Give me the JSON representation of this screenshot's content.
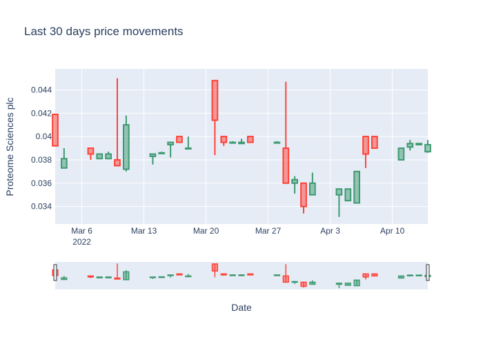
{
  "chart_data": {
    "type": "candlestick",
    "title": "Last 30 days price movements",
    "xlabel": "Date",
    "ylabel": "Proteome Sciences plc",
    "ylim": [
      0.0325,
      0.0458
    ],
    "y_ticks": [
      0.034,
      0.036,
      0.038,
      0.04,
      0.042,
      0.044
    ],
    "y_tick_labels": [
      "0.034",
      "0.036",
      "0.038",
      "0.04",
      "0.042",
      "0.044"
    ],
    "x_ticks": [
      {
        "date": "2022-03-06",
        "label": "Mar 6",
        "sublabel": "2022"
      },
      {
        "date": "2022-03-13",
        "label": "Mar 13"
      },
      {
        "date": "2022-03-20",
        "label": "Mar 20"
      },
      {
        "date": "2022-03-27",
        "label": "Mar 27"
      },
      {
        "date": "2022-04-03",
        "label": "Apr 3"
      },
      {
        "date": "2022-04-10",
        "label": "Apr 10"
      }
    ],
    "xlim": [
      "2022-03-03T12:00",
      "2022-04-14T12:00"
    ],
    "increasing_color": "#3D9970",
    "decreasing_color": "#FF4136",
    "rangeslider": true,
    "candles": [
      {
        "date": "2022-03-03",
        "open": 0.0419,
        "high": 0.0419,
        "low": 0.0392,
        "close": 0.0392
      },
      {
        "date": "2022-03-04",
        "open": 0.0373,
        "high": 0.039,
        "low": 0.0373,
        "close": 0.0381
      },
      {
        "date": "2022-03-07",
        "open": 0.039,
        "high": 0.039,
        "low": 0.038,
        "close": 0.0385
      },
      {
        "date": "2022-03-08",
        "open": 0.0381,
        "high": 0.0385,
        "low": 0.0381,
        "close": 0.0385
      },
      {
        "date": "2022-03-09",
        "open": 0.0381,
        "high": 0.0387,
        "low": 0.0381,
        "close": 0.0385
      },
      {
        "date": "2022-03-10",
        "open": 0.038,
        "high": 0.045,
        "low": 0.0375,
        "close": 0.0375
      },
      {
        "date": "2022-03-11",
        "open": 0.0372,
        "high": 0.0418,
        "low": 0.037,
        "close": 0.041
      },
      {
        "date": "2022-03-14",
        "open": 0.0383,
        "high": 0.0385,
        "low": 0.0376,
        "close": 0.0385
      },
      {
        "date": "2022-03-15",
        "open": 0.0386,
        "high": 0.0387,
        "low": 0.0385,
        "close": 0.0386
      },
      {
        "date": "2022-03-16",
        "open": 0.0393,
        "high": 0.0395,
        "low": 0.0382,
        "close": 0.0395
      },
      {
        "date": "2022-03-17",
        "open": 0.04,
        "high": 0.04,
        "low": 0.0395,
        "close": 0.0395
      },
      {
        "date": "2022-03-18",
        "open": 0.039,
        "high": 0.04,
        "low": 0.039,
        "close": 0.039
      },
      {
        "date": "2022-03-21",
        "open": 0.0448,
        "high": 0.0448,
        "low": 0.0384,
        "close": 0.0414
      },
      {
        "date": "2022-03-22",
        "open": 0.04,
        "high": 0.04,
        "low": 0.0392,
        "close": 0.0395
      },
      {
        "date": "2022-03-23",
        "open": 0.0395,
        "high": 0.0396,
        "low": 0.0394,
        "close": 0.0395
      },
      {
        "date": "2022-03-24",
        "open": 0.0394,
        "high": 0.0398,
        "low": 0.0394,
        "close": 0.0395
      },
      {
        "date": "2022-03-25",
        "open": 0.04,
        "high": 0.04,
        "low": 0.0395,
        "close": 0.0395
      },
      {
        "date": "2022-03-28",
        "open": 0.0395,
        "high": 0.0396,
        "low": 0.0394,
        "close": 0.0395
      },
      {
        "date": "2022-03-29",
        "open": 0.039,
        "high": 0.0447,
        "low": 0.036,
        "close": 0.036
      },
      {
        "date": "2022-03-30",
        "open": 0.036,
        "high": 0.0366,
        "low": 0.0351,
        "close": 0.0363
      },
      {
        "date": "2022-03-31",
        "open": 0.036,
        "high": 0.036,
        "low": 0.0334,
        "close": 0.034
      },
      {
        "date": "2022-04-01",
        "open": 0.035,
        "high": 0.0369,
        "low": 0.035,
        "close": 0.036
      },
      {
        "date": "2022-04-04",
        "open": 0.035,
        "high": 0.0355,
        "low": 0.0331,
        "close": 0.0355
      },
      {
        "date": "2022-04-05",
        "open": 0.0345,
        "high": 0.0355,
        "low": 0.0345,
        "close": 0.0355
      },
      {
        "date": "2022-04-06",
        "open": 0.0343,
        "high": 0.037,
        "low": 0.0343,
        "close": 0.037
      },
      {
        "date": "2022-04-07",
        "open": 0.04,
        "high": 0.04,
        "low": 0.0373,
        "close": 0.0385
      },
      {
        "date": "2022-04-08",
        "open": 0.04,
        "high": 0.04,
        "low": 0.039,
        "close": 0.039
      },
      {
        "date": "2022-04-11",
        "open": 0.038,
        "high": 0.039,
        "low": 0.038,
        "close": 0.039
      },
      {
        "date": "2022-04-12",
        "open": 0.0391,
        "high": 0.0397,
        "low": 0.0388,
        "close": 0.0394
      },
      {
        "date": "2022-04-13",
        "open": 0.0393,
        "high": 0.0394,
        "low": 0.0393,
        "close": 0.0394
      },
      {
        "date": "2022-04-14",
        "open": 0.0387,
        "high": 0.0397,
        "low": 0.0386,
        "close": 0.0393
      }
    ]
  }
}
